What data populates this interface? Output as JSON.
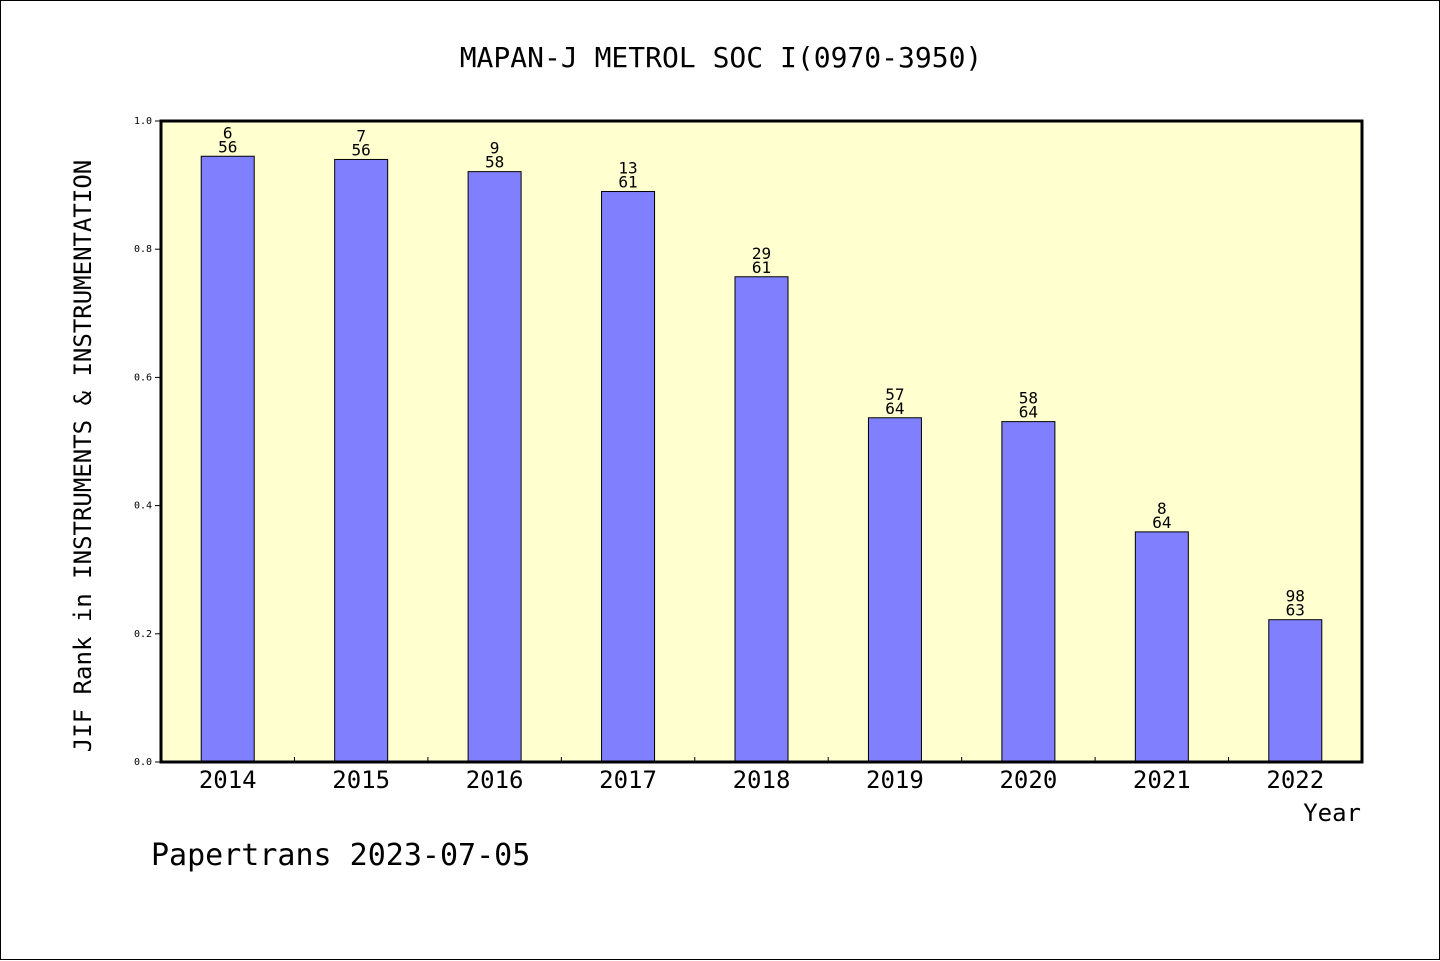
{
  "footer": {
    "text": "Papertrans 2023-07-05"
  },
  "chart_data": {
    "type": "bar",
    "title": "MAPAN-J METROL SOC I(0970-3950)",
    "xlabel": "Year",
    "ylabel": "JIF Rank in INSTRUMENTS & INSTRUMENTATION",
    "ylim": [
      0,
      1
    ],
    "yticks": [
      "0.0",
      "0.2",
      "0.4",
      "0.6",
      "0.8",
      "1.0"
    ],
    "grid": false,
    "categories": [
      "2014",
      "2015",
      "2016",
      "2017",
      "2018",
      "2019",
      "2020",
      "2021",
      "2022"
    ],
    "values": [
      0.945,
      0.94,
      0.921,
      0.89,
      0.757,
      0.537,
      0.531,
      0.359,
      0.222
    ],
    "bar_labels": [
      {
        "top": "6",
        "bottom": "56"
      },
      {
        "top": "7",
        "bottom": "56"
      },
      {
        "top": "9",
        "bottom": "58"
      },
      {
        "top": "13",
        "bottom": "61"
      },
      {
        "top": "29",
        "bottom": "61"
      },
      {
        "top": "57",
        "bottom": "64"
      },
      {
        "top": "58",
        "bottom": "64"
      },
      {
        "top": "8",
        "bottom": "64"
      },
      {
        "top": "98",
        "bottom": "63"
      }
    ],
    "colors": {
      "bar": "#8080ff",
      "plot_background": "#ffffd0",
      "axis": "#000000"
    }
  }
}
